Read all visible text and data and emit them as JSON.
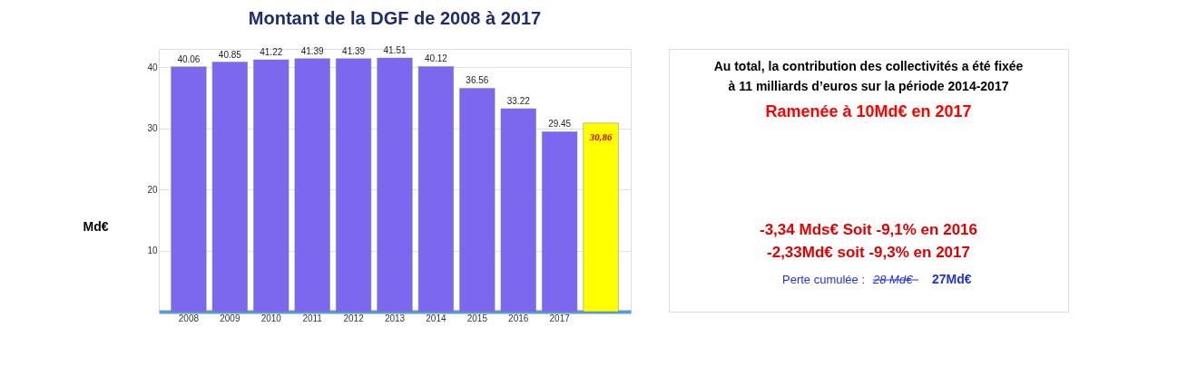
{
  "chart_data": {
    "type": "bar",
    "title": "Montant de la DGF de 2008 à 2017",
    "ylabel": "Md€",
    "categories": [
      "2008",
      "2009",
      "2010",
      "2011",
      "2012",
      "2013",
      "2014",
      "2015",
      "2016",
      "2017",
      null
    ],
    "values": [
      40.06,
      40.85,
      41.22,
      41.39,
      41.39,
      41.51,
      40.12,
      36.56,
      33.22,
      29.45,
      30.86
    ],
    "value_labels": [
      "40.06",
      "40.85",
      "41.22",
      "41.39",
      "41.39",
      "41.51",
      "40.12",
      "36.56",
      "33.22",
      "29.45",
      "30,86"
    ],
    "colors": [
      "#7b68ee",
      "#7b68ee",
      "#7b68ee",
      "#7b68ee",
      "#7b68ee",
      "#7b68ee",
      "#7b68ee",
      "#7b68ee",
      "#7b68ee",
      "#7b68ee",
      "#ffff00"
    ],
    "ylim": [
      0,
      43
    ],
    "yticks": [
      {
        "value": 0,
        "label": null
      },
      10,
      20,
      30,
      40
    ],
    "grid": "y",
    "annotations": [
      "Au total, la contribution  des collectivités a été fixée",
      "à 11 milliards d’euros  sur la période 2014-2017",
      "Ramenée à 10Md€ en 2017",
      "-3,34 Mds€ Soit -9,1% en 2016",
      "-2,33Md€ soit -9,3% en 2017",
      "Perte cumulée :",
      "28 Md€",
      "27Md€"
    ]
  }
}
